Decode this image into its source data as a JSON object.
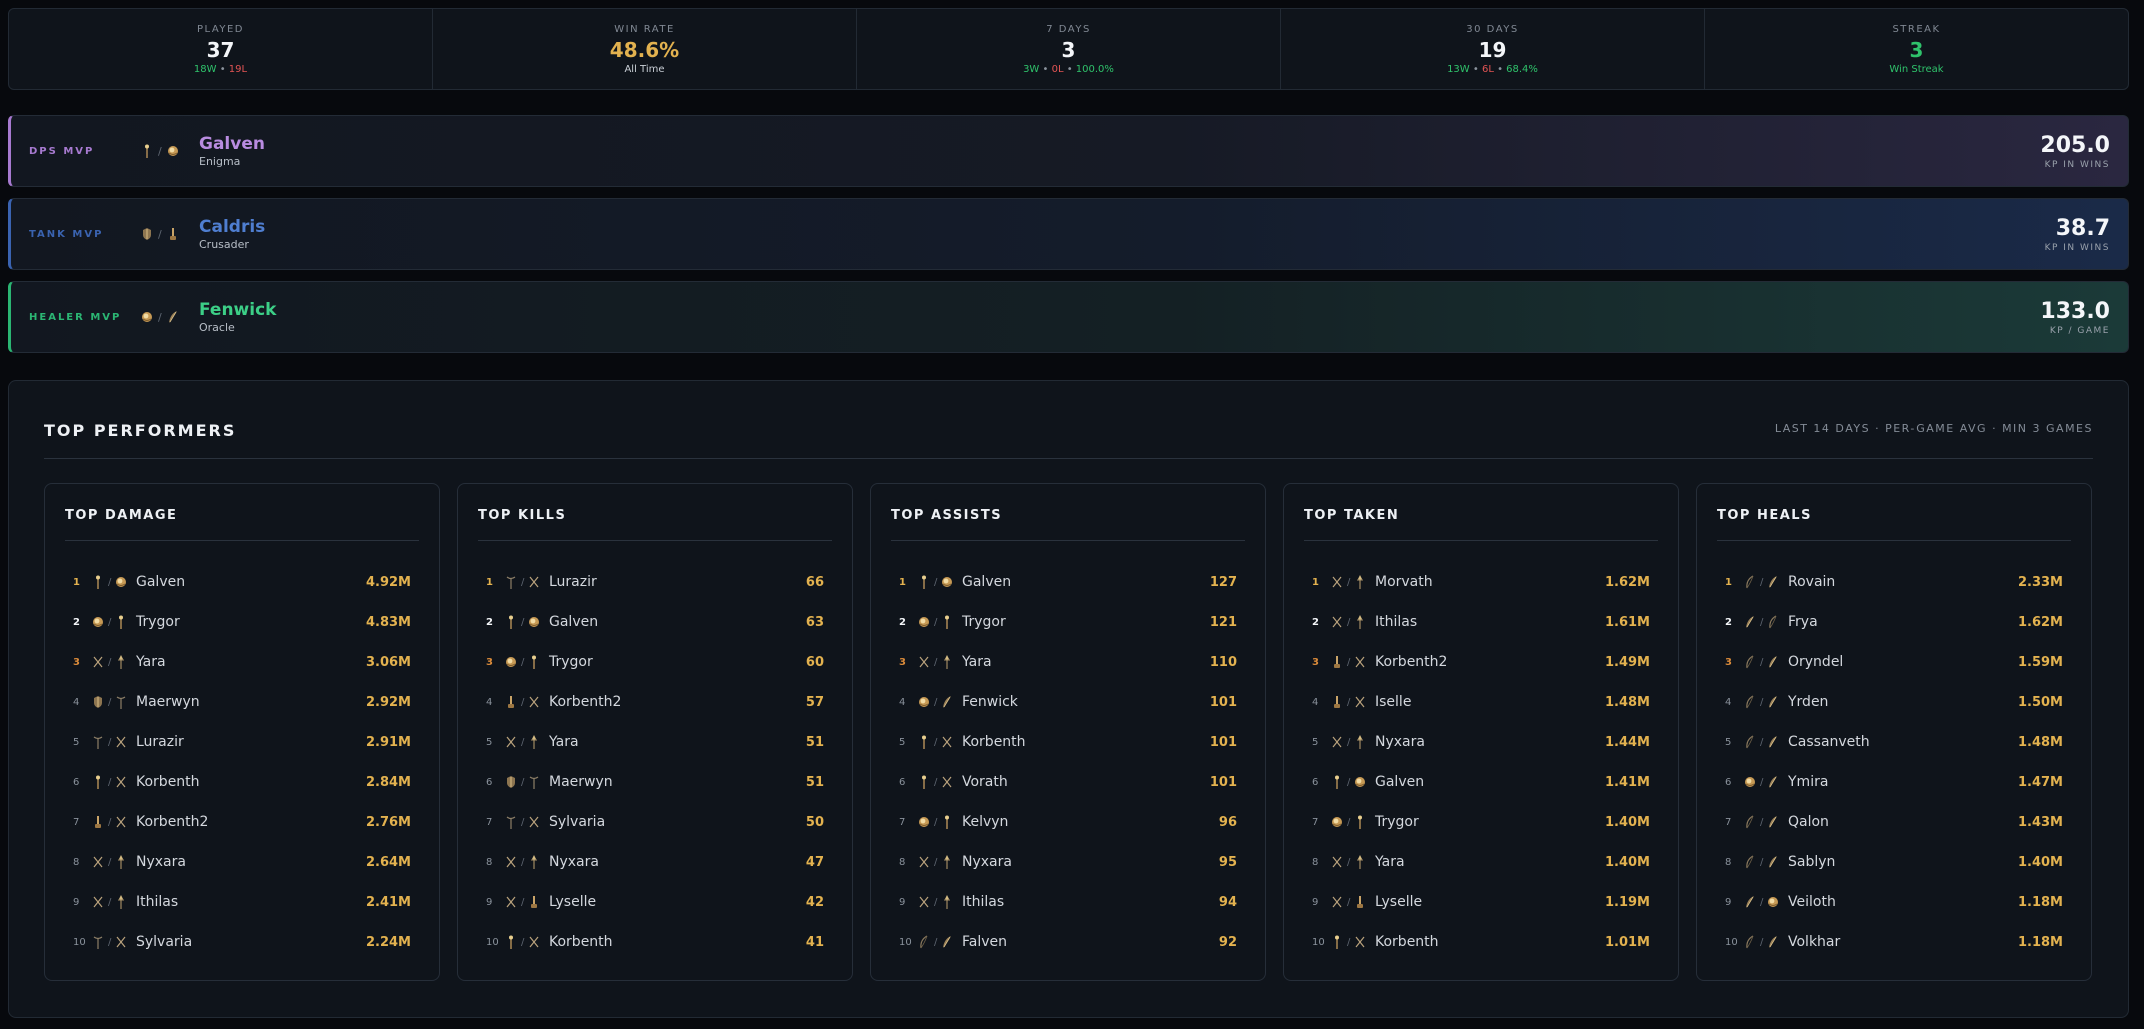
{
  "stats": [
    {
      "label": "PLAYED",
      "value": "37",
      "sub": [
        {
          "t": "18W",
          "c": "green"
        },
        {
          "t": " • ",
          "c": "sep"
        },
        {
          "t": "19L",
          "c": "red"
        }
      ]
    },
    {
      "label": "WIN RATE",
      "value": "48.6%",
      "value_color": "gold",
      "sub": [
        {
          "t": "All Time",
          "c": "white"
        }
      ]
    },
    {
      "label": "7 DAYS",
      "value": "3",
      "sub": [
        {
          "t": "3W",
          "c": "green"
        },
        {
          "t": " • ",
          "c": "sep"
        },
        {
          "t": "0L",
          "c": "red"
        },
        {
          "t": " • ",
          "c": "sep"
        },
        {
          "t": "100.0%",
          "c": "green"
        }
      ]
    },
    {
      "label": "30 DAYS",
      "value": "19",
      "sub": [
        {
          "t": "13W",
          "c": "green"
        },
        {
          "t": " • ",
          "c": "sep"
        },
        {
          "t": "6L",
          "c": "red"
        },
        {
          "t": " • ",
          "c": "sep"
        },
        {
          "t": "68.4%",
          "c": "green"
        }
      ]
    },
    {
      "label": "STREAK",
      "value": "3",
      "value_color": "green",
      "sub": [
        {
          "t": "Win Streak",
          "c": "green"
        }
      ]
    }
  ],
  "mvps": {
    "dps": {
      "role": "DPS MVP",
      "icons": [
        "staff-icon",
        "orb-icon"
      ],
      "name": "Galven",
      "class": "Enigma",
      "score": "205.0",
      "metric": "KP IN WINS"
    },
    "tank": {
      "role": "TANK MVP",
      "icons": [
        "shield-icon",
        "sword-icon"
      ],
      "name": "Caldris",
      "class": "Crusader",
      "score": "38.7",
      "metric": "KP IN WINS"
    },
    "heal": {
      "role": "HEALER MVP",
      "icons": [
        "orb-icon",
        "quill-icon"
      ],
      "name": "Fenwick",
      "class": "Oracle",
      "score": "133.0",
      "metric": "KP / GAME"
    }
  },
  "top_performers": {
    "title": "TOP PERFORMERS",
    "meta": "LAST 14 DAYS · PER-GAME AVG · MIN 3 GAMES",
    "panels": [
      {
        "title": "TOP DAMAGE",
        "rows": [
          {
            "rank": "1",
            "icons": [
              "staff-icon",
              "orb-icon"
            ],
            "name": "Galven",
            "value": "4.92M"
          },
          {
            "rank": "2",
            "icons": [
              "orb-icon",
              "staff-icon"
            ],
            "name": "Trygor",
            "value": "4.83M"
          },
          {
            "rank": "3",
            "icons": [
              "blades-icon",
              "spear-icon"
            ],
            "name": "Yara",
            "value": "3.06M"
          },
          {
            "rank": "4",
            "icons": [
              "shield-icon",
              "trident-icon"
            ],
            "name": "Maerwyn",
            "value": "2.92M"
          },
          {
            "rank": "5",
            "icons": [
              "trident-icon",
              "blades-icon"
            ],
            "name": "Lurazir",
            "value": "2.91M"
          },
          {
            "rank": "6",
            "icons": [
              "staff-icon",
              "blades-icon"
            ],
            "name": "Korbenth",
            "value": "2.84M"
          },
          {
            "rank": "7",
            "icons": [
              "sword-icon",
              "blades-icon"
            ],
            "name": "Korbenth2",
            "value": "2.76M"
          },
          {
            "rank": "8",
            "icons": [
              "blades-icon",
              "spear-icon"
            ],
            "name": "Nyxara",
            "value": "2.64M"
          },
          {
            "rank": "9",
            "icons": [
              "blades-icon",
              "spear-icon"
            ],
            "name": "Ithilas",
            "value": "2.41M"
          },
          {
            "rank": "10",
            "icons": [
              "trident-icon",
              "blades-icon"
            ],
            "name": "Sylvaria",
            "value": "2.24M"
          }
        ]
      },
      {
        "title": "TOP KILLS",
        "rows": [
          {
            "rank": "1",
            "icons": [
              "trident-icon",
              "blades-icon"
            ],
            "name": "Lurazir",
            "value": "66"
          },
          {
            "rank": "2",
            "icons": [
              "staff-icon",
              "orb-icon"
            ],
            "name": "Galven",
            "value": "63"
          },
          {
            "rank": "3",
            "icons": [
              "orb-icon",
              "staff-icon"
            ],
            "name": "Trygor",
            "value": "60"
          },
          {
            "rank": "4",
            "icons": [
              "sword-icon",
              "blades-icon"
            ],
            "name": "Korbenth2",
            "value": "57"
          },
          {
            "rank": "5",
            "icons": [
              "blades-icon",
              "spear-icon"
            ],
            "name": "Yara",
            "value": "51"
          },
          {
            "rank": "6",
            "icons": [
              "shield-icon",
              "trident-icon"
            ],
            "name": "Maerwyn",
            "value": "51"
          },
          {
            "rank": "7",
            "icons": [
              "trident-icon",
              "blades-icon"
            ],
            "name": "Sylvaria",
            "value": "50"
          },
          {
            "rank": "8",
            "icons": [
              "blades-icon",
              "spear-icon"
            ],
            "name": "Nyxara",
            "value": "47"
          },
          {
            "rank": "9",
            "icons": [
              "blades-icon",
              "sword-icon"
            ],
            "name": "Lyselle",
            "value": "42"
          },
          {
            "rank": "10",
            "icons": [
              "staff-icon",
              "blades-icon"
            ],
            "name": "Korbenth",
            "value": "41"
          }
        ]
      },
      {
        "title": "TOP ASSISTS",
        "rows": [
          {
            "rank": "1",
            "icons": [
              "staff-icon",
              "orb-icon"
            ],
            "name": "Galven",
            "value": "127"
          },
          {
            "rank": "2",
            "icons": [
              "orb-icon",
              "staff-icon"
            ],
            "name": "Trygor",
            "value": "121"
          },
          {
            "rank": "3",
            "icons": [
              "blades-icon",
              "spear-icon"
            ],
            "name": "Yara",
            "value": "110"
          },
          {
            "rank": "4",
            "icons": [
              "orb-icon",
              "quill-icon"
            ],
            "name": "Fenwick",
            "value": "101"
          },
          {
            "rank": "5",
            "icons": [
              "staff-icon",
              "blades-icon"
            ],
            "name": "Korbenth",
            "value": "101"
          },
          {
            "rank": "6",
            "icons": [
              "staff-icon",
              "blades-icon"
            ],
            "name": "Vorath",
            "value": "101"
          },
          {
            "rank": "7",
            "icons": [
              "orb-icon",
              "staff-icon"
            ],
            "name": "Kelvyn",
            "value": "96"
          },
          {
            "rank": "8",
            "icons": [
              "blades-icon",
              "spear-icon"
            ],
            "name": "Nyxara",
            "value": "95"
          },
          {
            "rank": "9",
            "icons": [
              "blades-icon",
              "spear-icon"
            ],
            "name": "Ithilas",
            "value": "94"
          },
          {
            "rank": "10",
            "icons": [
              "feather-icon",
              "quill-icon"
            ],
            "name": "Falven",
            "value": "92"
          }
        ]
      },
      {
        "title": "TOP TAKEN",
        "rows": [
          {
            "rank": "1",
            "icons": [
              "blades-icon",
              "spear-icon"
            ],
            "name": "Morvath",
            "value": "1.62M"
          },
          {
            "rank": "2",
            "icons": [
              "blades-icon",
              "spear-icon"
            ],
            "name": "Ithilas",
            "value": "1.61M"
          },
          {
            "rank": "3",
            "icons": [
              "sword-icon",
              "blades-icon"
            ],
            "name": "Korbenth2",
            "value": "1.49M"
          },
          {
            "rank": "4",
            "icons": [
              "sword-icon",
              "blades-icon"
            ],
            "name": "Iselle",
            "value": "1.48M"
          },
          {
            "rank": "5",
            "icons": [
              "blades-icon",
              "spear-icon"
            ],
            "name": "Nyxara",
            "value": "1.44M"
          },
          {
            "rank": "6",
            "icons": [
              "staff-icon",
              "orb-icon"
            ],
            "name": "Galven",
            "value": "1.41M"
          },
          {
            "rank": "7",
            "icons": [
              "orb-icon",
              "staff-icon"
            ],
            "name": "Trygor",
            "value": "1.40M"
          },
          {
            "rank": "8",
            "icons": [
              "blades-icon",
              "spear-icon"
            ],
            "name": "Yara",
            "value": "1.40M"
          },
          {
            "rank": "9",
            "icons": [
              "blades-icon",
              "sword-icon"
            ],
            "name": "Lyselle",
            "value": "1.19M"
          },
          {
            "rank": "10",
            "icons": [
              "staff-icon",
              "blades-icon"
            ],
            "name": "Korbenth",
            "value": "1.01M"
          }
        ]
      },
      {
        "title": "TOP HEALS",
        "rows": [
          {
            "rank": "1",
            "icons": [
              "feather-icon",
              "quill-icon"
            ],
            "name": "Rovain",
            "value": "2.33M"
          },
          {
            "rank": "2",
            "icons": [
              "quill-icon",
              "feather-icon"
            ],
            "name": "Frya",
            "value": "1.62M"
          },
          {
            "rank": "3",
            "icons": [
              "feather-icon",
              "quill-icon"
            ],
            "name": "Oryndel",
            "value": "1.59M"
          },
          {
            "rank": "4",
            "icons": [
              "feather-icon",
              "quill-icon"
            ],
            "name": "Yrden",
            "value": "1.50M"
          },
          {
            "rank": "5",
            "icons": [
              "feather-icon",
              "quill-icon"
            ],
            "name": "Cassanveth",
            "value": "1.48M"
          },
          {
            "rank": "6",
            "icons": [
              "orb-icon",
              "quill-icon"
            ],
            "name": "Ymira",
            "value": "1.47M"
          },
          {
            "rank": "7",
            "icons": [
              "feather-icon",
              "quill-icon"
            ],
            "name": "Qalon",
            "value": "1.43M"
          },
          {
            "rank": "8",
            "icons": [
              "feather-icon",
              "quill-icon"
            ],
            "name": "Sablyn",
            "value": "1.40M"
          },
          {
            "rank": "9",
            "icons": [
              "quill-icon",
              "orb-icon"
            ],
            "name": "Veiloth",
            "value": "1.18M"
          },
          {
            "rank": "10",
            "icons": [
              "feather-icon",
              "quill-icon"
            ],
            "name": "Volkhar",
            "value": "1.18M"
          }
        ]
      }
    ]
  },
  "colors": {
    "gold": "#e3b24f",
    "green": "#2fc26b",
    "red": "#e25454",
    "dps": "#a77ad0",
    "tank": "#3a63b0",
    "healer": "#2bb673"
  }
}
